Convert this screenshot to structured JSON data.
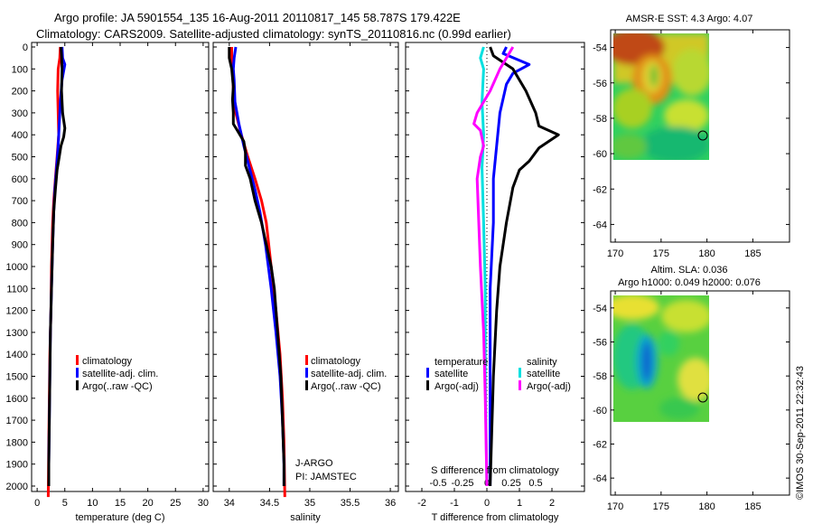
{
  "header": {
    "line1": "Argo profile: JA 5901554_135 16-Aug-2011 20110817_145 58.787S 179.422E",
    "line2": "Climatology: CARS2009. Satellite-adjusted climatology: synTS_20110816.nc (0.99d earlier)"
  },
  "footer_stamp": "©IMOS 30-Sep-2011 22:32:43",
  "colors": {
    "climatology": "#ff0000",
    "satellite": "#0000ff",
    "argo": "#000000",
    "satellite_s": "#00e0e0",
    "argo_s": "#ff00ff"
  },
  "chart_data": [
    {
      "type": "line",
      "name": "temperature-profile",
      "xlabel": "temperature (deg C)",
      "ylabel": "",
      "xlim": [
        -1,
        31
      ],
      "ylim": [
        2080,
        0
      ],
      "xticks": [
        "0",
        "5",
        "10",
        "15",
        "20",
        "25",
        "30"
      ],
      "yticks": [
        "0",
        "100",
        "200",
        "300",
        "400",
        "500",
        "600",
        "700",
        "800",
        "900",
        "1000",
        "1100",
        "1200",
        "1300",
        "1400",
        "1500",
        "1600",
        "1700",
        "1800",
        "1900",
        "2000"
      ],
      "legend": [
        "climatology",
        "satellite-adj. clim.",
        "Argo(..raw -QC)"
      ],
      "series": [
        {
          "name": "climatology",
          "color": "#ff0000",
          "points": [
            [
              4.2,
              0
            ],
            [
              4.1,
              50
            ],
            [
              3.8,
              100
            ],
            [
              3.7,
              200
            ],
            [
              3.8,
              300
            ],
            [
              3.9,
              400
            ],
            [
              3.6,
              500
            ],
            [
              3.3,
              600
            ],
            [
              3.0,
              700
            ],
            [
              2.8,
              800
            ],
            [
              2.6,
              1000
            ],
            [
              2.5,
              1200
            ],
            [
              2.3,
              1400
            ],
            [
              2.2,
              1600
            ],
            [
              2.1,
              1800
            ],
            [
              2.0,
              2050
            ]
          ]
        },
        {
          "name": "satellite-adj. clim.",
          "color": "#0000ff",
          "points": [
            [
              4.5,
              0
            ],
            [
              4.6,
              50
            ],
            [
              5.0,
              80
            ],
            [
              4.5,
              150
            ],
            [
              4.2,
              250
            ],
            [
              4.0,
              350
            ],
            [
              3.8,
              450
            ],
            [
              3.5,
              550
            ],
            [
              3.2,
              650
            ],
            [
              3.0,
              750
            ],
            [
              2.8,
              900
            ],
            [
              2.6,
              1100
            ],
            [
              2.4,
              1300
            ],
            [
              2.3,
              1500
            ],
            [
              2.2,
              1700
            ],
            [
              2.1,
              1900
            ],
            [
              2.1,
              2000
            ]
          ]
        },
        {
          "name": "Argo(..raw -QC)",
          "color": "#000000",
          "points": [
            [
              4.3,
              0
            ],
            [
              4.4,
              40
            ],
            [
              4.5,
              100
            ],
            [
              4.4,
              200
            ],
            [
              4.6,
              300
            ],
            [
              5.0,
              370
            ],
            [
              4.8,
              410
            ],
            [
              4.3,
              450
            ],
            [
              4.0,
              500
            ],
            [
              3.6,
              560
            ],
            [
              3.3,
              650
            ],
            [
              3.0,
              750
            ],
            [
              2.8,
              900
            ],
            [
              2.6,
              1100
            ],
            [
              2.4,
              1300
            ],
            [
              2.3,
              1500
            ],
            [
              2.2,
              1700
            ],
            [
              2.1,
              1900
            ],
            [
              2.1,
              2000
            ]
          ]
        }
      ]
    },
    {
      "type": "line",
      "name": "salinity-profile",
      "xlabel": "salinity",
      "xlim": [
        33.8,
        36.1
      ],
      "ylim": [
        2080,
        0
      ],
      "xticks": [
        "34",
        "34.5",
        "35",
        "35.5",
        "36"
      ],
      "legend": [
        "climatology",
        "satellite-adj. clim.",
        "Argo(..raw -QC)"
      ],
      "annotation": [
        "J-ARGO",
        "PI: JAMSTEC"
      ],
      "series": [
        {
          "name": "climatology",
          "color": "#ff0000",
          "points": [
            [
              34.03,
              0
            ],
            [
              34.03,
              50
            ],
            [
              34.04,
              100
            ],
            [
              34.05,
              200
            ],
            [
              34.08,
              300
            ],
            [
              34.15,
              400
            ],
            [
              34.23,
              500
            ],
            [
              34.32,
              600
            ],
            [
              34.4,
              700
            ],
            [
              34.46,
              800
            ],
            [
              34.52,
              1000
            ],
            [
              34.58,
              1200
            ],
            [
              34.63,
              1400
            ],
            [
              34.66,
              1600
            ],
            [
              34.68,
              1800
            ],
            [
              34.69,
              2050
            ]
          ]
        },
        {
          "name": "satellite-adj. clim.",
          "color": "#0000ff",
          "points": [
            [
              34.08,
              0
            ],
            [
              34.06,
              50
            ],
            [
              34.05,
              100
            ],
            [
              34.06,
              150
            ],
            [
              34.07,
              250
            ],
            [
              34.12,
              350
            ],
            [
              34.18,
              450
            ],
            [
              34.25,
              550
            ],
            [
              34.32,
              650
            ],
            [
              34.38,
              750
            ],
            [
              34.45,
              900
            ],
            [
              34.52,
              1100
            ],
            [
              34.58,
              1300
            ],
            [
              34.63,
              1500
            ],
            [
              34.66,
              1700
            ],
            [
              34.68,
              1900
            ],
            [
              34.68,
              2000
            ]
          ]
        },
        {
          "name": "Argo(..raw -QC)",
          "color": "#000000",
          "points": [
            [
              34.0,
              0
            ],
            [
              34.0,
              50
            ],
            [
              34.03,
              100
            ],
            [
              34.05,
              180
            ],
            [
              34.04,
              240
            ],
            [
              34.05,
              300
            ],
            [
              34.05,
              350
            ],
            [
              34.1,
              380
            ],
            [
              34.18,
              430
            ],
            [
              34.2,
              480
            ],
            [
              34.2,
              540
            ],
            [
              34.26,
              600
            ],
            [
              34.32,
              700
            ],
            [
              34.4,
              800
            ],
            [
              34.46,
              900
            ],
            [
              34.52,
              1000
            ],
            [
              34.56,
              1100
            ],
            [
              34.6,
              1300
            ],
            [
              34.64,
              1500
            ],
            [
              34.66,
              1700
            ],
            [
              34.68,
              1900
            ],
            [
              34.68,
              2000
            ]
          ]
        }
      ]
    },
    {
      "type": "line",
      "name": "difference-profile",
      "xlabel": "T difference from climatology",
      "xlabel_top": "S difference from climatology",
      "xlim": [
        -2.5,
        3
      ],
      "ylim": [
        2080,
        0
      ],
      "xticks_bottom": [
        "-2",
        "-1",
        "0",
        "1",
        "2"
      ],
      "xticks_top": [
        "-0.5",
        "-0.25",
        "0",
        "0.25",
        "0.5"
      ],
      "legend_titles": [
        "temperature",
        "salinity"
      ],
      "legend": [
        "satellite",
        "Argo(-adj)",
        "satellite",
        "Argo(-adj)"
      ],
      "series": [
        {
          "name": "temperature satellite",
          "color": "#0000ff",
          "points": [
            [
              0.6,
              0
            ],
            [
              0.5,
              30
            ],
            [
              1.3,
              80
            ],
            [
              0.8,
              120
            ],
            [
              0.6,
              170
            ],
            [
              0.4,
              300
            ],
            [
              0.3,
              450
            ],
            [
              0.2,
              600
            ],
            [
              0.2,
              800
            ],
            [
              0.1,
              1100
            ],
            [
              0.1,
              1500
            ],
            [
              0.1,
              2000
            ]
          ]
        },
        {
          "name": "temperature Argo(-adj)",
          "color": "#000000",
          "points": [
            [
              0.1,
              0
            ],
            [
              0.2,
              40
            ],
            [
              0.8,
              100
            ],
            [
              1.2,
              200
            ],
            [
              1.5,
              300
            ],
            [
              1.6,
              360
            ],
            [
              2.2,
              400
            ],
            [
              1.6,
              460
            ],
            [
              1.3,
              520
            ],
            [
              1.0,
              560
            ],
            [
              0.8,
              640
            ],
            [
              0.6,
              800
            ],
            [
              0.4,
              1000
            ],
            [
              0.3,
              1200
            ],
            [
              0.2,
              1500
            ],
            [
              0.1,
              2000
            ]
          ]
        },
        {
          "name": "salinity satellite",
          "color": "#00e0e0",
          "points": [
            [
              -0.1,
              0
            ],
            [
              -0.2,
              50
            ],
            [
              -0.1,
              100
            ],
            [
              -0.15,
              250
            ],
            [
              -0.1,
              400
            ],
            [
              -0.15,
              550
            ],
            [
              -0.1,
              800
            ],
            [
              -0.05,
              1100
            ],
            [
              -0.05,
              1500
            ],
            [
              0.0,
              2000
            ]
          ]
        },
        {
          "name": "salinity Argo(-adj)",
          "color": "#ff00ff",
          "points": [
            [
              0.8,
              0
            ],
            [
              0.6,
              50
            ],
            [
              0.4,
              100
            ],
            [
              0.1,
              200
            ],
            [
              -0.3,
              300
            ],
            [
              -0.4,
              350
            ],
            [
              -0.2,
              380
            ],
            [
              -0.1,
              450
            ],
            [
              -0.2,
              500
            ],
            [
              -0.3,
              600
            ],
            [
              -0.25,
              800
            ],
            [
              -0.2,
              1000
            ],
            [
              -0.1,
              1300
            ],
            [
              -0.05,
              1600
            ],
            [
              0.0,
              2000
            ]
          ]
        }
      ]
    },
    {
      "type": "heatmap",
      "name": "sst-map",
      "title": "AMSR-E SST: 4.3 Argo: 4.07",
      "xticks": [
        "170",
        "175",
        "180",
        "185"
      ],
      "yticks": [
        "-54",
        "-56",
        "-58",
        "-60",
        "-62",
        "-64"
      ],
      "xlim": [
        169.5,
        189
      ],
      "ylim": [
        -65,
        -53
      ],
      "marker": [
        179.4,
        -58.8
      ]
    },
    {
      "type": "heatmap",
      "name": "sla-map",
      "title": "Altim. SLA: 0.036",
      "subtitle": "Argo h1000: 0.049 h2000: 0.076",
      "xticks": [
        "170",
        "175",
        "180",
        "185"
      ],
      "yticks": [
        "-54",
        "-56",
        "-58",
        "-60",
        "-62",
        "-64"
      ],
      "xlim": [
        169.5,
        189
      ],
      "ylim": [
        -65,
        -53
      ],
      "marker": [
        179.4,
        -58.8
      ]
    }
  ]
}
